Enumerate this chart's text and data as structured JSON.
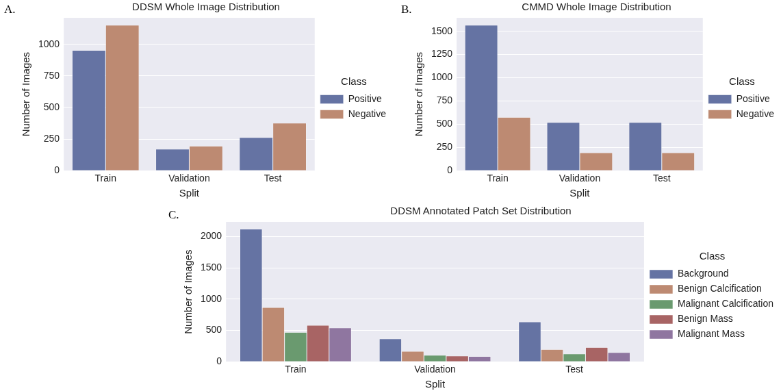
{
  "chart_data": [
    {
      "type": "bar",
      "title": "DDSM Whole Image Distribution",
      "xlabel": "Split",
      "ylabel": "Number of Images",
      "legend_title": "Class",
      "annotations": [
        "A."
      ],
      "categories": [
        "Train",
        "Validation",
        "Test"
      ],
      "series": [
        {
          "name": "Positive",
          "color": "#6573a3",
          "values": [
            953,
            170,
            262
          ]
        },
        {
          "name": "Negative",
          "color": "#bd8a72",
          "values": [
            1152,
            195,
            377
          ]
        }
      ],
      "ylim": [
        0,
        1210
      ],
      "yticks": [
        0,
        250,
        500,
        750,
        1000
      ],
      "grid": "y",
      "legend": "right"
    },
    {
      "type": "bar",
      "title": "CMMD Whole Image Distribution",
      "xlabel": "Split",
      "ylabel": "Number of Images",
      "legend_title": "Class",
      "annotations": [
        "B."
      ],
      "categories": [
        "Train",
        "Validation",
        "Test"
      ],
      "series": [
        {
          "name": "Positive",
          "color": "#6573a3",
          "values": [
            1565,
            519,
            519
          ]
        },
        {
          "name": "Negative",
          "color": "#bd8a72",
          "values": [
            575,
            194,
            194
          ]
        }
      ],
      "ylim": [
        0,
        1645
      ],
      "yticks": [
        0,
        250,
        500,
        750,
        1000,
        1250,
        1500
      ],
      "grid": "y",
      "legend": "right"
    },
    {
      "type": "bar",
      "title": "DDSM Annotated Patch Set Distribution",
      "xlabel": "Split",
      "ylabel": "Number of Images",
      "legend_title": "Class",
      "annotations": [
        "C."
      ],
      "categories": [
        "Train",
        "Validation",
        "Test"
      ],
      "series": [
        {
          "name": "Background",
          "color": "#6573a3",
          "values": [
            2121,
            367,
            637
          ]
        },
        {
          "name": "Benign Calcification",
          "color": "#bd8a72",
          "values": [
            867,
            167,
            196
          ]
        },
        {
          "name": "Malignant Calcification",
          "color": "#6a9a6f",
          "values": [
            471,
            104,
            125
          ]
        },
        {
          "name": "Benign Mass",
          "color": "#a86464",
          "values": [
            583,
            92,
            229
          ]
        },
        {
          "name": "Malignant Mass",
          "color": "#8f76a0",
          "values": [
            542,
            83,
            146
          ]
        }
      ],
      "ylim": [
        0,
        2237
      ],
      "yticks": [
        0,
        500,
        1000,
        1500,
        2000
      ],
      "grid": "y",
      "legend": "right"
    }
  ]
}
